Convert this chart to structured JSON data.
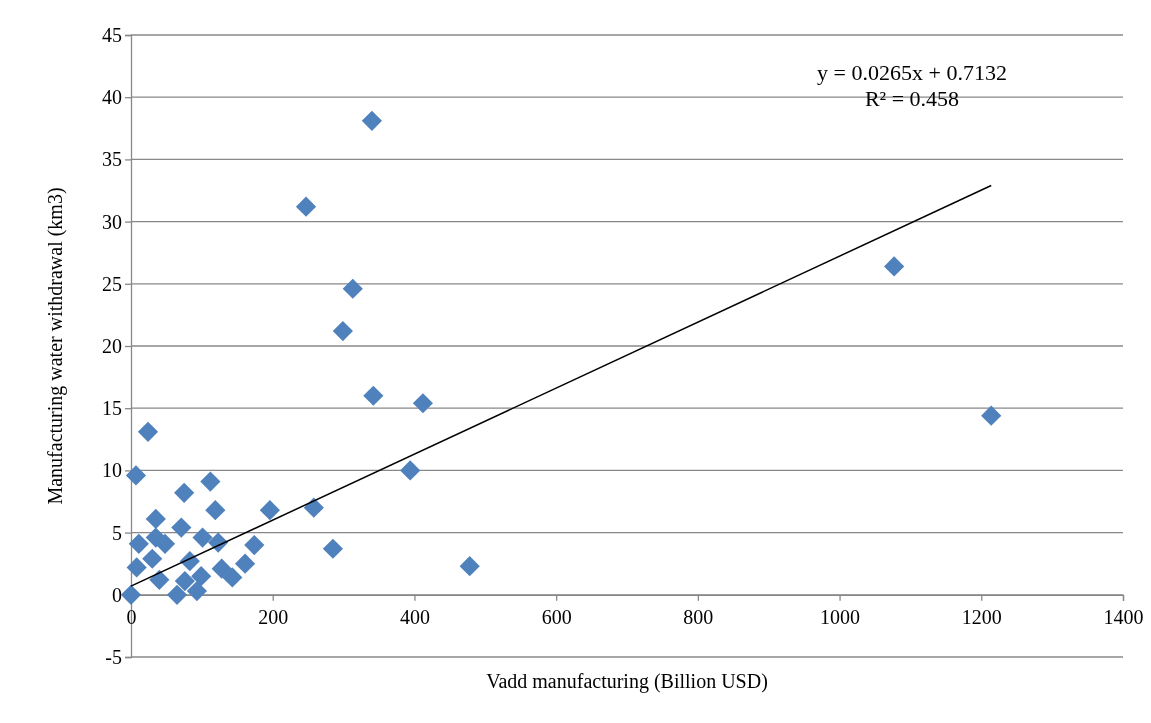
{
  "chart_data": {
    "type": "scatter",
    "xlabel": "Vadd manufacturing (Billion USD)",
    "ylabel": "Manufacturing water withdrawal (km3)",
    "xlim": [
      0,
      1400
    ],
    "xticks": [
      0,
      200,
      400,
      600,
      800,
      1000,
      1200,
      1400
    ],
    "ylim": [
      -5,
      45
    ],
    "yticks": [
      -5,
      0,
      5,
      10,
      15,
      20,
      25,
      30,
      35,
      40,
      45
    ],
    "grid": "y",
    "marker": "diamond",
    "annotations": [
      "y = 0.0265x + 0.7132",
      "R² = 0.458"
    ],
    "series": [
      {
        "color": "#4f81bd",
        "x": [
          24,
          7,
          75,
          112,
          119,
          35,
          71,
          196,
          101,
          123,
          174,
          11,
          35,
          48,
          83,
          99,
          93,
          128,
          143,
          161,
          65,
          76,
          247,
          340,
          313,
          299,
          342,
          412,
          394,
          285,
          478,
          1077,
          1214,
          258,
          0,
          8,
          40,
          30
        ],
        "values": [
          13.1,
          9.6,
          8.2,
          9.1,
          6.8,
          6.1,
          5.4,
          6.8,
          4.6,
          4.2,
          4.0,
          4.1,
          4.6,
          4.1,
          2.7,
          1.5,
          0.3,
          2.1,
          1.4,
          2.5,
          0,
          1.1,
          31.2,
          38.1,
          24.6,
          21.2,
          16.0,
          15.4,
          10.0,
          3.7,
          2.3,
          26.4,
          14.4,
          7.0,
          0,
          2.2,
          1.2,
          2.9
        ]
      },
      {
        "type": "line",
        "marker": "none",
        "color": "#000000",
        "x": [
          0,
          1214
        ],
        "values": [
          0.7,
          32.9
        ]
      }
    ]
  }
}
